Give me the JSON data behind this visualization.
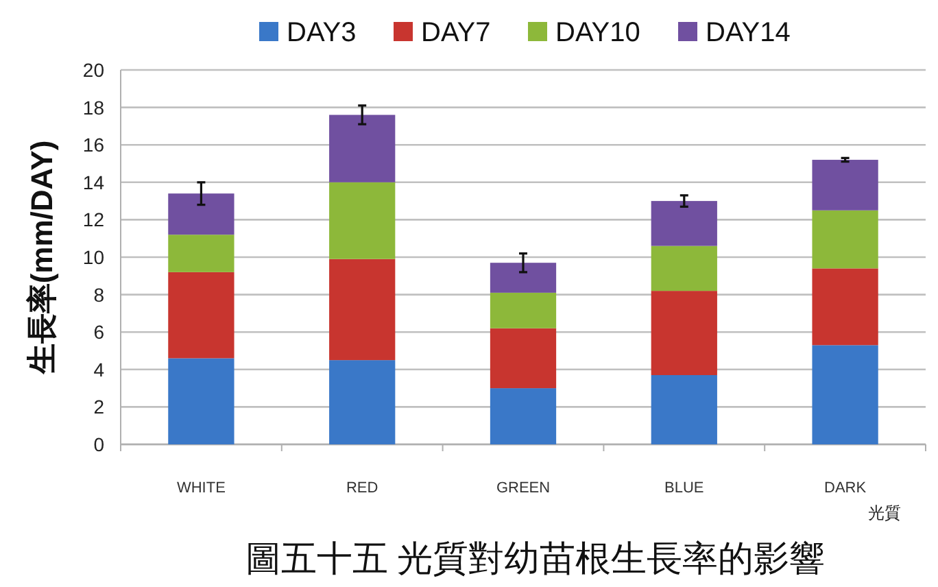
{
  "chart_data": {
    "type": "bar",
    "stacked": true,
    "title": "圖五十五 光質對幼苗根生長率的影響",
    "xlabel": "光質",
    "ylabel": "生長率(mm/DAY)",
    "categories": [
      "WHITE",
      "RED",
      "GREEN",
      "BLUE",
      "DARK"
    ],
    "series": [
      {
        "name": "DAY3",
        "color": "#3a78c8",
        "values": [
          4.6,
          4.5,
          3.0,
          3.7,
          5.3
        ]
      },
      {
        "name": "DAY7",
        "color": "#c8352f",
        "values": [
          4.6,
          5.4,
          3.2,
          4.5,
          4.1
        ]
      },
      {
        "name": "DAY10",
        "color": "#8db83a",
        "values": [
          2.0,
          4.1,
          1.9,
          2.4,
          3.1
        ]
      },
      {
        "name": "DAY14",
        "color": "#7050a0",
        "values": [
          2.2,
          3.6,
          1.6,
          2.4,
          2.7
        ],
        "errors": [
          0.6,
          0.5,
          0.5,
          0.3,
          0.1
        ]
      }
    ],
    "ylim": [
      0,
      20
    ],
    "yticks": [
      0,
      2,
      4,
      6,
      8,
      10,
      12,
      14,
      16,
      18,
      20
    ],
    "grid": "y",
    "legend": "top"
  }
}
